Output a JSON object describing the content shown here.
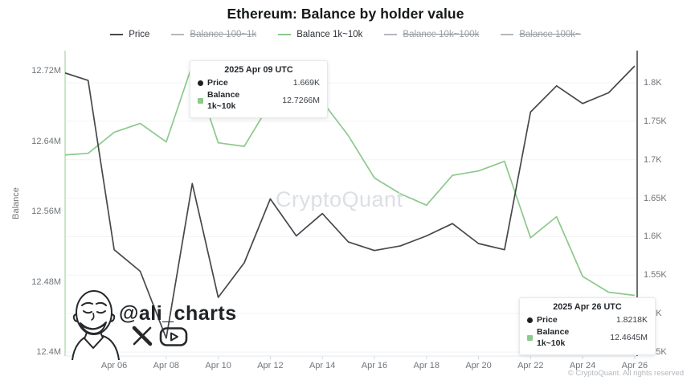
{
  "title": "Ethereum: Balance by holder value",
  "watermark": "CryptoQuant",
  "colors": {
    "price_line": "#46484b",
    "balance_line": "#8cc98c",
    "left_axis_line": "#bfe0ba",
    "right_axis_line": "#4a4a4a",
    "gridline": "#f2f3f4",
    "inactive_legend": "#9ba1a7"
  },
  "legend": {
    "items": [
      {
        "label": "Price",
        "active": true,
        "color": "#46484b"
      },
      {
        "label": "Balance 100~1k",
        "active": false,
        "color": "#b4b9be"
      },
      {
        "label": "Balance 1k~10k",
        "active": true,
        "color": "#8cc98c"
      },
      {
        "label": "Balance 10k~100k",
        "active": false,
        "color": "#b4b9be"
      },
      {
        "label": "Balance 100k~",
        "active": false,
        "color": "#b4b9be"
      }
    ]
  },
  "tooltips": [
    {
      "title": "2025 Apr 09 UTC",
      "rows": [
        {
          "name": "Price",
          "value": "1.669K",
          "marker": "black-dot"
        },
        {
          "name": "Balance 1k~10k",
          "value": "12.7266M",
          "marker": "green-square"
        }
      ]
    },
    {
      "title": "2025 Apr 26 UTC",
      "rows": [
        {
          "name": "Price",
          "value": "1.8218K",
          "marker": "black-dot"
        },
        {
          "name": "Balance 1k~10k",
          "value": "12.4645M",
          "marker": "green-square"
        }
      ]
    }
  ],
  "chart_data": {
    "type": "line",
    "title": "Ethereum: Balance by holder value",
    "grid": true,
    "legend_position": "top",
    "x": [
      "Apr 04",
      "Apr 05",
      "Apr 06",
      "Apr 07",
      "Apr 08",
      "Apr 09",
      "Apr 10",
      "Apr 11",
      "Apr 12",
      "Apr 13",
      "Apr 14",
      "Apr 15",
      "Apr 16",
      "Apr 17",
      "Apr 18",
      "Apr 19",
      "Apr 20",
      "Apr 21",
      "Apr 22",
      "Apr 23",
      "Apr 24",
      "Apr 25",
      "Apr 26"
    ],
    "x_tick_labels": [
      "Apr 06",
      "Apr 08",
      "Apr 10",
      "Apr 12",
      "Apr 14",
      "Apr 16",
      "Apr 18",
      "Apr 20",
      "Apr 22",
      "Apr 24",
      "Apr 26"
    ],
    "x_tick_indices": [
      2,
      4,
      6,
      8,
      10,
      12,
      14,
      16,
      18,
      20,
      22
    ],
    "series": [
      {
        "name": "Balance 1k~10k",
        "yaxis": "left",
        "color": "#8cc98c",
        "values": [
          12.624,
          12.626,
          12.65,
          12.66,
          12.639,
          12.7266,
          12.638,
          12.634,
          12.683,
          12.688,
          12.685,
          12.646,
          12.598,
          12.58,
          12.567,
          12.601,
          12.606,
          12.617,
          12.53,
          12.554,
          12.486,
          12.468,
          12.4645
        ]
      },
      {
        "name": "Price",
        "yaxis": "right",
        "color": "#46484b",
        "values": [
          1.814,
          1.803,
          1.583,
          1.555,
          1.468,
          1.669,
          1.521,
          1.566,
          1.649,
          1.601,
          1.63,
          1.593,
          1.582,
          1.588,
          1.601,
          1.617,
          1.591,
          1.583,
          1.762,
          1.796,
          1.773,
          1.787,
          1.8218
        ]
      }
    ],
    "left_axis": {
      "label": "Balance",
      "unit": "M",
      "tick_labels": [
        "12.72M",
        "12.64M",
        "12.56M",
        "12.48M",
        "12.4M"
      ],
      "tick_values": [
        12.72,
        12.64,
        12.56,
        12.48,
        12.4
      ],
      "range": [
        12.4,
        12.755
      ]
    },
    "right_axis": {
      "unit": "K",
      "tick_labels": [
        "1.8K",
        "1.75K",
        "1.7K",
        "1.65K",
        "1.6K",
        "1.55K",
        "1.5K",
        "1.45K"
      ],
      "tick_values": [
        1.8,
        1.75,
        1.7,
        1.65,
        1.6,
        1.55,
        1.5,
        1.45
      ],
      "range": [
        1.45,
        1.825
      ]
    }
  },
  "attribution": {
    "handle": "@ali_charts"
  },
  "footer": {
    "copyright": "© CryptoQuant. All rights reserved"
  }
}
